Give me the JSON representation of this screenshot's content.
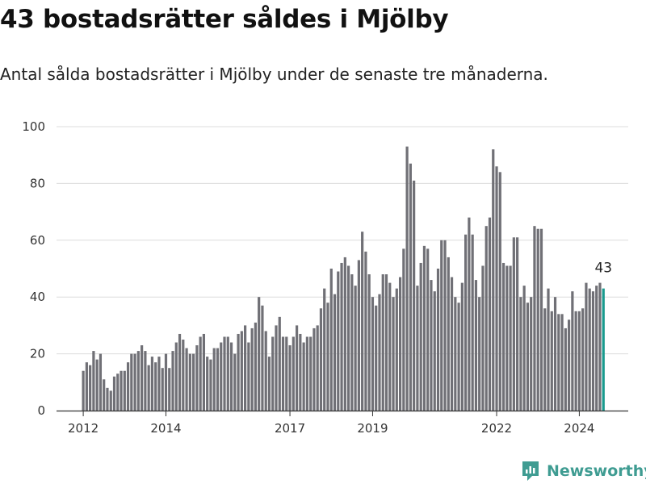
{
  "title": "43 bostadsrätter såldes i Mjölby",
  "subtitle": "Antal sålda bostadsrätter i Mjölby under de senaste tre månaderna.",
  "brand": {
    "name": "Newsworthy",
    "icon": "newsworthy-logo-icon"
  },
  "colors": {
    "bar": "#707076",
    "highlight": "#1a9a8e",
    "grid": "#dcdcdc",
    "axis": "#333333",
    "brand": "#3f9c92"
  },
  "chart_data": {
    "type": "bar",
    "title": "",
    "xlabel": "",
    "ylabel": "",
    "ylim": [
      0,
      100
    ],
    "yticks": [
      0,
      20,
      40,
      60,
      80,
      100
    ],
    "xticks": [
      {
        "label": "2012",
        "index": 0
      },
      {
        "label": "2014",
        "index": 24
      },
      {
        "label": "2017",
        "index": 60
      },
      {
        "label": "2019",
        "index": 84
      },
      {
        "label": "2022",
        "index": 120
      },
      {
        "label": "2024",
        "index": 144
      }
    ],
    "grid": true,
    "legend": "none",
    "start": "2012-01",
    "frequency": "monthly",
    "highlight_last": true,
    "last_value_label": "43",
    "values": [
      14,
      17,
      16,
      21,
      18,
      20,
      11,
      8,
      7,
      12,
      13,
      14,
      14,
      17,
      20,
      20,
      21,
      23,
      21,
      16,
      19,
      17,
      19,
      15,
      20,
      15,
      21,
      24,
      27,
      25,
      22,
      20,
      20,
      23,
      26,
      27,
      19,
      18,
      22,
      22,
      24,
      26,
      26,
      24,
      20,
      27,
      28,
      30,
      24,
      29,
      31,
      40,
      37,
      28,
      19,
      26,
      30,
      33,
      26,
      26,
      23,
      26,
      30,
      27,
      24,
      26,
      26,
      29,
      30,
      36,
      43,
      38,
      50,
      41,
      49,
      52,
      54,
      51,
      48,
      44,
      53,
      63,
      56,
      48,
      40,
      37,
      41,
      48,
      48,
      45,
      40,
      43,
      47,
      57,
      93,
      87,
      81,
      44,
      52,
      58,
      57,
      46,
      42,
      50,
      60,
      60,
      54,
      47,
      40,
      38,
      45,
      62,
      68,
      62,
      46,
      40,
      51,
      65,
      68,
      92,
      86,
      84,
      52,
      51,
      51,
      61,
      61,
      40,
      44,
      38,
      40,
      65,
      64,
      64,
      36,
      43,
      35,
      40,
      34,
      34,
      29,
      32,
      42,
      35,
      35,
      36,
      45,
      43,
      42,
      44,
      45,
      43
    ]
  }
}
